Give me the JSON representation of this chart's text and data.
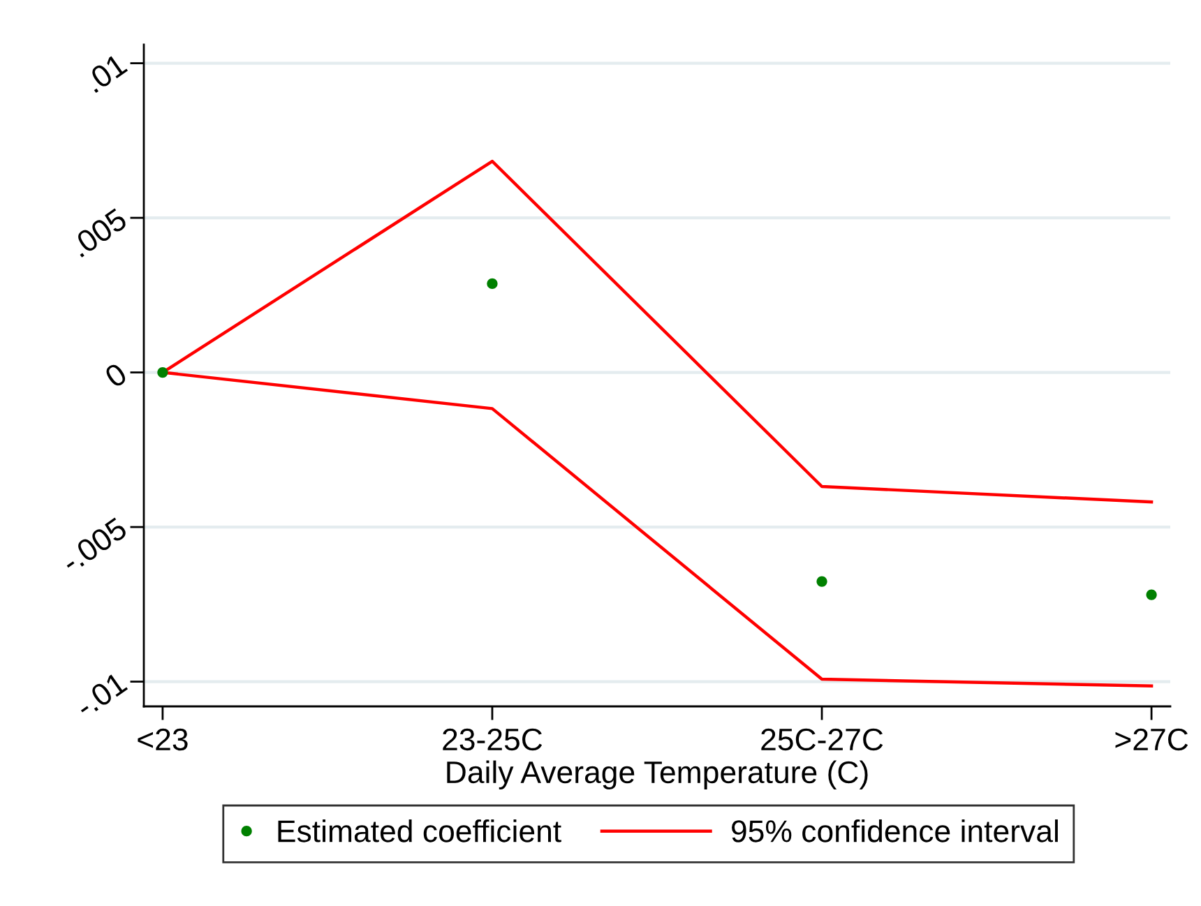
{
  "chart_data": {
    "type": "line",
    "categories": [
      "<23",
      "23-25C",
      "25C-27C",
      ">27C"
    ],
    "xlabel": "Daily Average Temperature (C)",
    "series": [
      {
        "name": "Estimated coefficient",
        "type": "scatter",
        "marker": "circle",
        "color": "#008000",
        "values": [
          0,
          0.00287,
          -0.00676,
          -0.00719
        ]
      },
      {
        "name": "95% confidence interval",
        "marker": "none",
        "line_style": "solid",
        "color": "#ff0000",
        "values": [
          0,
          0.00683,
          -0.00369,
          -0.00419
        ]
      },
      {
        "marker": "none",
        "line_style": "solid",
        "color": "#ff0000",
        "values": [
          0,
          -0.00117,
          -0.00992,
          -0.01014
        ]
      }
    ],
    "ylim": [
      -0.0108,
      0.0106
    ],
    "yticks": [
      {
        "value": -0.01,
        "label": "-.01"
      },
      {
        "value": -0.005,
        "label": "-.005"
      },
      0,
      {
        "value": 0.005,
        "label": ".005"
      },
      {
        "value": 0.01,
        "label": ".01"
      }
    ],
    "grid": "y",
    "legend": "bottom"
  }
}
